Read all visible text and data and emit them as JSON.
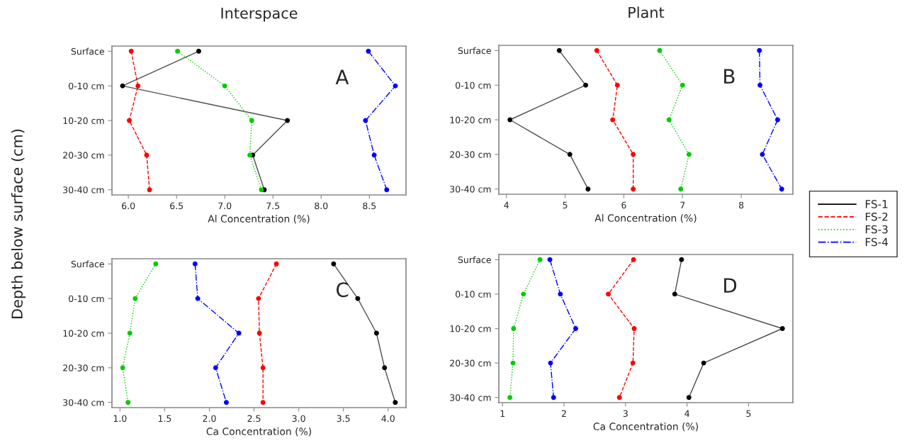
{
  "chart_data": [
    {
      "type": "line",
      "orientation": "horizontal",
      "title": "Interspace",
      "xlabel": "Al Concentration (%)",
      "ylabel": "Depth below surface (cm)",
      "annotations": [
        "A"
      ],
      "categories": [
        "Surface",
        "0-10 cm",
        "10-20 cm",
        "20-30 cm",
        "30-40 cm"
      ],
      "xlim": [
        5.83,
        8.88
      ],
      "xticks": [
        {
          "value": 6,
          "label": "6.0"
        },
        6.5,
        {
          "value": 7,
          "label": "7.0"
        },
        7.5,
        {
          "value": 8,
          "label": "8.0"
        },
        8.5
      ],
      "marker": "circle",
      "grid": false,
      "legend": "right",
      "series": [
        {
          "name": "FS-1",
          "color": "#000000",
          "line_style": "solid",
          "values": [
            6.73,
            5.94,
            7.65,
            7.29,
            7.41
          ]
        },
        {
          "name": "FS-2",
          "color": "#ff0000",
          "line_style": "dashed",
          "values": [
            6.03,
            6.1,
            6.01,
            6.19,
            6.22
          ]
        },
        {
          "name": "FS-3",
          "color": "#00cc00",
          "line_style": "dotted",
          "values": [
            6.51,
            7.0,
            7.28,
            7.26,
            7.38
          ]
        },
        {
          "name": "FS-4",
          "color": "#0000ff",
          "line_style": "dashdot",
          "values": [
            8.49,
            8.77,
            8.46,
            8.55,
            8.68
          ]
        }
      ]
    },
    {
      "type": "line",
      "orientation": "horizontal",
      "title": "Plant",
      "xlabel": "Al Concentration (%)",
      "annotations": [
        "B"
      ],
      "categories": [
        "Surface",
        "0-10 cm",
        "10-20 cm",
        "20-30 cm",
        "30-40 cm"
      ],
      "xlim": [
        3.87,
        8.88
      ],
      "xticks": [
        4,
        5,
        6,
        7,
        8
      ],
      "marker": "circle",
      "grid": false,
      "series": [
        {
          "color": "#000000",
          "line_style": "solid",
          "values": [
            4.9,
            5.35,
            4.06,
            5.08,
            5.39
          ]
        },
        {
          "color": "#ff0000",
          "line_style": "dashed",
          "values": [
            5.54,
            5.89,
            5.81,
            6.16,
            6.16
          ]
        },
        {
          "color": "#00cc00",
          "line_style": "dotted",
          "values": [
            6.61,
            7.0,
            6.77,
            7.11,
            6.97
          ]
        },
        {
          "color": "#0000ff",
          "line_style": "dashdot",
          "values": [
            8.31,
            8.32,
            8.62,
            8.36,
            8.69
          ]
        }
      ]
    },
    {
      "type": "line",
      "orientation": "horizontal",
      "xlabel": "Ca Concentration (%)",
      "annotations": [
        "C"
      ],
      "categories": [
        "Surface",
        "0-10 cm",
        "10-20 cm",
        "20-30 cm",
        "30-40 cm"
      ],
      "xlim": [
        0.91,
        4.2
      ],
      "xticks": [
        {
          "value": 1,
          "label": "1.0"
        },
        1.5,
        {
          "value": 2,
          "label": "2.0"
        },
        2.5,
        {
          "value": 3,
          "label": "3.0"
        },
        3.5,
        {
          "value": 4,
          "label": "4.0"
        }
      ],
      "marker": "circle",
      "grid": false,
      "series": [
        {
          "color": "#000000",
          "line_style": "solid",
          "values": [
            3.39,
            3.66,
            3.87,
            3.96,
            4.08
          ]
        },
        {
          "color": "#ff0000",
          "line_style": "dashed",
          "values": [
            2.75,
            2.55,
            2.56,
            2.6,
            2.6
          ]
        },
        {
          "color": "#00cc00",
          "line_style": "dotted",
          "values": [
            1.4,
            1.17,
            1.11,
            1.03,
            1.09
          ]
        },
        {
          "color": "#0000ff",
          "line_style": "dashdot",
          "values": [
            1.84,
            1.87,
            2.33,
            2.07,
            2.19
          ]
        }
      ]
    },
    {
      "type": "line",
      "orientation": "horizontal",
      "xlabel": "Ca Concentration (%)",
      "annotations": [
        "D"
      ],
      "categories": [
        "Surface",
        "0-10 cm",
        "10-20 cm",
        "20-30 cm",
        "30-40 cm"
      ],
      "xlim": [
        0.94,
        5.72
      ],
      "xticks": [
        1,
        2,
        3,
        4,
        5
      ],
      "marker": "circle",
      "grid": false,
      "series": [
        {
          "color": "#000000",
          "line_style": "solid",
          "values": [
            3.91,
            3.8,
            5.55,
            4.27,
            4.03
          ]
        },
        {
          "color": "#ff0000",
          "line_style": "dashed",
          "values": [
            3.13,
            2.72,
            3.14,
            3.12,
            2.9
          ]
        },
        {
          "color": "#00cc00",
          "line_style": "dotted",
          "values": [
            1.61,
            1.34,
            1.18,
            1.17,
            1.12
          ]
        },
        {
          "color": "#0000ff",
          "line_style": "dashdot",
          "values": [
            1.77,
            1.94,
            2.19,
            1.78,
            1.83
          ]
        }
      ]
    }
  ]
}
